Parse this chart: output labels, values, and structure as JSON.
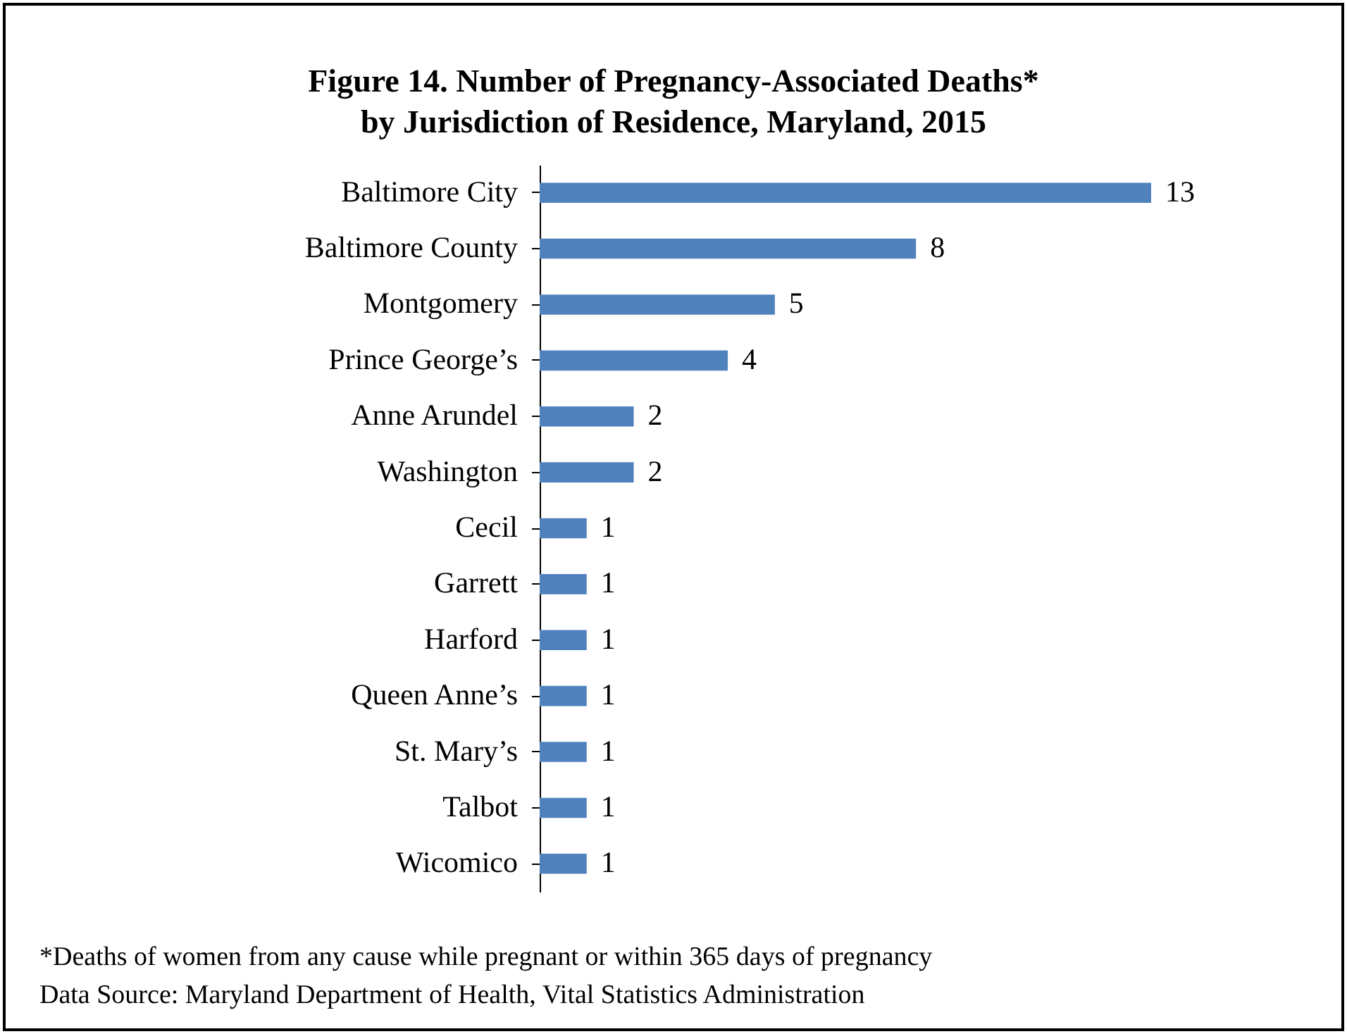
{
  "chart_data": {
    "type": "bar",
    "orientation": "horizontal",
    "title": "Figure 14. Number of Pregnancy-Associated Deaths*\nby Jurisdiction of Residence, Maryland, 2015",
    "categories": [
      "Baltimore City",
      "Baltimore County",
      "Montgomery",
      "Prince George’s",
      "Anne Arundel",
      "Washington",
      "Cecil",
      "Garrett",
      "Harford",
      "Queen Anne’s",
      "St. Mary’s",
      "Talbot",
      "Wicomico"
    ],
    "values": [
      13,
      8,
      5,
      4,
      2,
      2,
      1,
      1,
      1,
      1,
      1,
      1,
      1
    ],
    "color": "#4f81bd",
    "data_labels": true,
    "annotations": [
      "*Deaths of women from any cause while pregnant or within 365 days of pregnancy",
      "Data Source: Maryland Department of Health, Vital Statistics Administration"
    ]
  }
}
